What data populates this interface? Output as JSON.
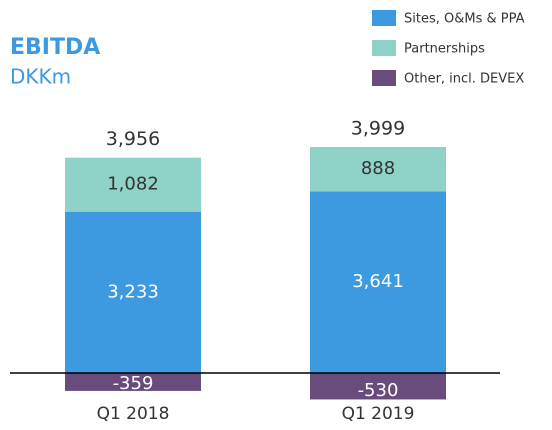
{
  "chart_data": {
    "type": "stacked_bar",
    "title": "EBITDA",
    "subtitle": "DKKm",
    "categories": [
      "Q1 2018",
      "Q1 2019"
    ],
    "series": [
      {
        "name": "Sites, O&Ms & PPA",
        "color": "#3d99e0",
        "values": [
          3233,
          3641
        ],
        "value_labels": [
          "3,233",
          "3,641"
        ]
      },
      {
        "name": "Partnerships",
        "color": "#8fd3c8",
        "values": [
          1082,
          888
        ],
        "value_labels": [
          "1,082",
          "888"
        ]
      },
      {
        "name": "Other, incl. DEVEX",
        "color": "#6a4c7c",
        "values": [
          -359,
          -530
        ]
      }
    ],
    "totals": [
      3956,
      3999
    ],
    "total_labels": [
      "3,956",
      "3,999"
    ],
    "legend": "top-right"
  }
}
